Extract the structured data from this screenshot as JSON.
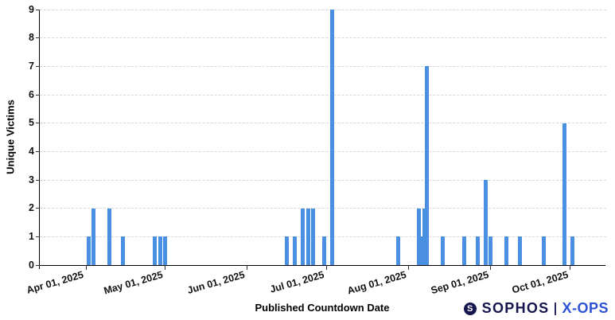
{
  "chart_data": {
    "type": "bar",
    "title": "",
    "xlabel": "Published Countdown Date",
    "ylabel": "Unique Victims",
    "ylim": [
      0,
      9
    ],
    "yticks": [
      0,
      1,
      2,
      3,
      4,
      5,
      6,
      7,
      8,
      9
    ],
    "grid": "horizontal-dashed",
    "legend": "none",
    "bar_color": "#4a90e2",
    "x_axis": {
      "ticks": [
        {
          "date": "2025-04-01",
          "label": "Apr 01, 2025"
        },
        {
          "date": "2025-05-01",
          "label": "May 01, 2025"
        },
        {
          "date": "2025-06-01",
          "label": "Jun 01, 2025"
        },
        {
          "date": "2025-07-01",
          "label": "Jul 01, 2025"
        },
        {
          "date": "2025-08-01",
          "label": "Aug 01, 2025"
        },
        {
          "date": "2025-09-01",
          "label": "Sep 01, 2025"
        },
        {
          "date": "2025-10-01",
          "label": "Oct 01, 2025"
        }
      ]
    },
    "points": [
      {
        "date": "2025-04-02",
        "value": 1
      },
      {
        "date": "2025-04-04",
        "value": 2
      },
      {
        "date": "2025-04-10",
        "value": 2
      },
      {
        "date": "2025-04-15",
        "value": 1
      },
      {
        "date": "2025-04-27",
        "value": 1
      },
      {
        "date": "2025-04-29",
        "value": 1
      },
      {
        "date": "2025-05-01",
        "value": 1
      },
      {
        "date": "2025-06-16",
        "value": 1
      },
      {
        "date": "2025-06-19",
        "value": 1
      },
      {
        "date": "2025-06-22",
        "value": 2
      },
      {
        "date": "2025-06-24",
        "value": 2
      },
      {
        "date": "2025-06-26",
        "value": 2
      },
      {
        "date": "2025-06-30",
        "value": 1
      },
      {
        "date": "2025-07-03",
        "value": 9
      },
      {
        "date": "2025-07-28",
        "value": 1
      },
      {
        "date": "2025-08-05",
        "value": 2
      },
      {
        "date": "2025-08-06",
        "value": 1
      },
      {
        "date": "2025-08-07",
        "value": 2
      },
      {
        "date": "2025-08-08",
        "value": 7
      },
      {
        "date": "2025-08-14",
        "value": 1
      },
      {
        "date": "2025-08-22",
        "value": 1
      },
      {
        "date": "2025-08-27",
        "value": 1
      },
      {
        "date": "2025-08-30",
        "value": 3
      },
      {
        "date": "2025-09-01",
        "value": 1
      },
      {
        "date": "2025-09-07",
        "value": 1
      },
      {
        "date": "2025-09-12",
        "value": 1
      },
      {
        "date": "2025-09-21",
        "value": 1
      },
      {
        "date": "2025-09-29",
        "value": 5
      },
      {
        "date": "2025-10-02",
        "value": 1
      }
    ]
  },
  "branding": {
    "shield_glyph": "S",
    "sophos": "SOPHOS",
    "separator": "|",
    "xops": "X-OPS",
    "navy": "#16164e",
    "blue": "#2e52d6"
  },
  "colors": {
    "bar": "#4a90e2",
    "grid": "#d7d7d7",
    "axis": "#000000",
    "text": "#111111",
    "background": "#ffffff"
  }
}
